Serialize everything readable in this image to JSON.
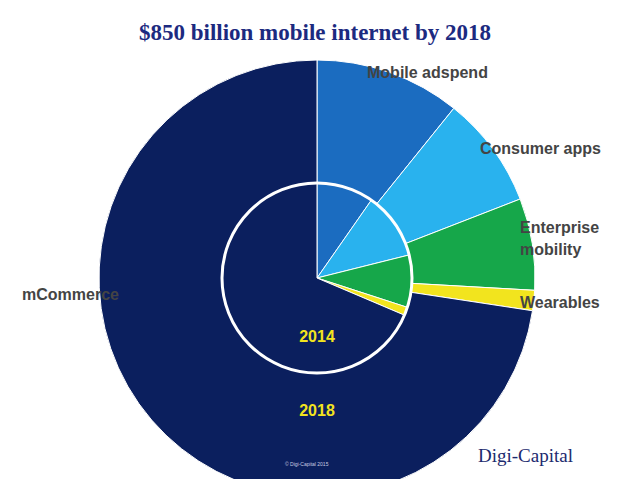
{
  "chart_data": {
    "type": "pie",
    "title": "$850 billion mobile internet by 2018",
    "categories": [
      "Mobile adspend",
      "Consumer apps",
      "Enterprise mobility",
      "Wearables",
      "mCommerce"
    ],
    "colors": [
      "#1b6cc0",
      "#29b2ee",
      "#16a74a",
      "#f2e41e",
      "#0b1f5e"
    ],
    "series": [
      {
        "name": "2018",
        "values": [
          10.8,
          8.3,
          6.8,
          1.5,
          72.6
        ]
      },
      {
        "name": "2014",
        "values": [
          9.7,
          11.4,
          8.9,
          1.4,
          68.6
        ]
      }
    ],
    "source": "Digi-Capital",
    "copyright": "© Digi-Capital 2015"
  }
}
